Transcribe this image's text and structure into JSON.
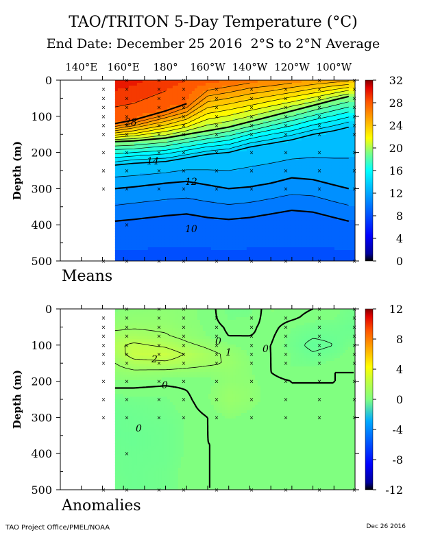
{
  "header": {
    "title": "TAO/TRITON 5-Day Temperature (°C)",
    "subtitle": "End Date: December 25 2016  2°S to 2°N Average"
  },
  "footer": {
    "left": "TAO Project Office/PMEL/NOAA",
    "right": "Dec 26 2016"
  },
  "chart_data": [
    {
      "type": "heatmap",
      "panel_label": "Means",
      "xlabel": "",
      "ylabel": "Depth (m)",
      "x_ticks": [
        "140°E",
        "160°E",
        "180°",
        "160°W",
        "140°W",
        "120°W",
        "100°W"
      ],
      "y_ticks": [
        "0",
        "100",
        "200",
        "300",
        "400",
        "500"
      ],
      "ylim": [
        0,
        500
      ],
      "colorbar_ticks": [
        "32",
        "28",
        "24",
        "20",
        "16",
        "12",
        "8",
        "4",
        "0"
      ],
      "colorbar_range": [
        0,
        32
      ],
      "longitudes_deg_east": [
        156,
        165,
        180,
        190,
        200,
        210,
        220,
        230,
        240,
        250,
        260,
        267
      ],
      "depths_m": [
        0,
        20,
        40,
        60,
        80,
        100,
        120,
        140,
        160,
        180,
        200,
        220,
        240,
        260,
        280,
        300,
        320,
        340,
        360,
        380,
        400,
        420,
        440,
        460,
        480,
        500
      ],
      "isotherm_depths": {
        "levels": [
          28,
          20,
          14,
          12,
          10
        ],
        "depths_m": [
          [
            120,
            110,
            85,
            65,
            0,
            0,
            0,
            0,
            0,
            0,
            0,
            0
          ],
          [
            170,
            168,
            160,
            150,
            140,
            130,
            115,
            100,
            85,
            70,
            55,
            45
          ],
          [
            235,
            230,
            225,
            215,
            205,
            200,
            185,
            175,
            165,
            150,
            140,
            130
          ],
          [
            300,
            295,
            285,
            280,
            290,
            300,
            295,
            285,
            270,
            275,
            290,
            300
          ],
          [
            390,
            385,
            375,
            370,
            380,
            385,
            380,
            370,
            360,
            365,
            380,
            390
          ]
        ]
      },
      "contour_labels": [
        "28",
        "14",
        "12",
        "10"
      ]
    },
    {
      "type": "heatmap",
      "panel_label": "Anomalies",
      "xlabel": "",
      "ylabel": "Depth (m)",
      "x_ticks": [
        "140°E",
        "160°E",
        "180°",
        "160°W",
        "140°W",
        "120°W",
        "100°W"
      ],
      "y_ticks": [
        "0",
        "100",
        "200",
        "300",
        "400",
        "500"
      ],
      "ylim": [
        0,
        500
      ],
      "colorbar_ticks": [
        "12",
        "8",
        "4",
        "0",
        "-4",
        "-8",
        "-12"
      ],
      "colorbar_range": [
        -12,
        12
      ],
      "longitudes_deg_east": [
        156,
        165,
        180,
        190,
        200,
        210,
        220,
        230,
        240,
        250,
        260,
        267
      ],
      "depths_m": [
        0,
        25,
        50,
        75,
        100,
        125,
        150,
        175,
        200,
        225,
        250,
        275,
        300,
        325,
        350,
        375,
        400,
        425,
        450,
        475,
        500
      ],
      "contour_labels": [
        "2",
        "1",
        "0",
        "0",
        "0",
        "0"
      ],
      "values": [
        [
          0.3,
          0.4,
          0.5,
          0.4,
          0.3,
          -0.5,
          -0.5,
          0.4,
          0.2,
          0.0,
          -0.2,
          -0.5
        ],
        [
          0.5,
          0.6,
          0.6,
          0.4,
          0.3,
          -0.4,
          -0.3,
          0.3,
          0.1,
          -0.2,
          -0.3,
          -0.6
        ],
        [
          0.8,
          0.9,
          0.8,
          0.5,
          0.3,
          -0.1,
          -0.1,
          0.2,
          -0.3,
          -0.6,
          -0.6,
          -0.8
        ],
        [
          1.3,
          1.4,
          1.1,
          0.7,
          0.3,
          0.0,
          0.0,
          0.1,
          -0.5,
          -0.9,
          -0.8,
          -0.7
        ],
        [
          1.8,
          2.2,
          1.8,
          1.2,
          0.8,
          0.4,
          0.2,
          0.0,
          -0.6,
          -1.3,
          -1.0,
          -0.4
        ],
        [
          1.4,
          2.5,
          2.6,
          1.9,
          1.3,
          0.8,
          0.3,
          0.0,
          -0.4,
          -0.9,
          -0.6,
          -0.2
        ],
        [
          1.0,
          1.6,
          1.8,
          1.5,
          1.2,
          0.9,
          0.4,
          0.0,
          -0.4,
          -0.5,
          -0.2,
          -0.1
        ],
        [
          0.6,
          0.8,
          0.7,
          0.6,
          0.5,
          0.7,
          0.4,
          0.0,
          -0.2,
          -0.2,
          0.0,
          0.0
        ],
        [
          0.3,
          0.3,
          0.2,
          0.2,
          0.2,
          0.6,
          0.5,
          0.1,
          0.0,
          0.0,
          0.0,
          0.0
        ],
        [
          -0.1,
          -0.1,
          -0.2,
          0.0,
          0.3,
          0.8,
          0.6,
          0.1,
          0.0,
          0.0,
          0.0,
          0.0
        ],
        [
          -0.6,
          -0.5,
          -0.4,
          -0.1,
          0.3,
          0.9,
          0.6,
          0.1,
          0.0,
          0.0,
          0.0,
          0.0
        ],
        [
          -0.8,
          -0.7,
          -0.5,
          -0.2,
          0.2,
          0.7,
          0.4,
          0.1,
          0.0,
          0.0,
          0.0,
          0.0
        ],
        [
          -0.9,
          -0.8,
          -0.6,
          -0.3,
          0.0,
          0.4,
          0.2,
          0.0,
          0.0,
          0.0,
          0.0,
          0.0
        ],
        [
          -0.9,
          -0.8,
          -0.7,
          -0.3,
          0.0,
          0.2,
          0.1,
          0.0,
          0.0,
          0.0,
          0.0,
          0.0
        ],
        [
          -0.9,
          -0.9,
          -0.7,
          -0.3,
          0.0,
          0.1,
          0.0,
          0.0,
          0.0,
          0.0,
          0.0,
          0.0
        ],
        [
          -0.8,
          -0.9,
          -0.7,
          -0.3,
          0.0,
          0.0,
          0.0,
          0.0,
          0.0,
          0.0,
          0.0,
          0.0
        ],
        [
          -0.8,
          -0.8,
          -0.7,
          -0.3,
          0.0,
          0.0,
          0.0,
          0.0,
          0.0,
          0.0,
          0.0,
          0.0
        ],
        [
          -0.7,
          -0.8,
          -0.7,
          -0.2,
          0.0,
          0.0,
          0.0,
          0.0,
          0.0,
          0.0,
          0.0,
          0.0
        ],
        [
          -0.7,
          -0.8,
          -0.6,
          -0.2,
          0.0,
          0.0,
          0.0,
          0.0,
          0.0,
          0.0,
          0.0,
          0.0
        ],
        [
          -0.6,
          -0.8,
          -0.6,
          -0.2,
          0.0,
          0.0,
          0.0,
          0.0,
          0.0,
          0.0,
          0.0,
          0.0
        ],
        [
          -0.6,
          -0.8,
          -0.6,
          -0.2,
          0.0,
          0.0,
          0.0,
          0.0,
          0.0,
          0.0,
          0.0,
          0.0
        ]
      ]
    }
  ]
}
